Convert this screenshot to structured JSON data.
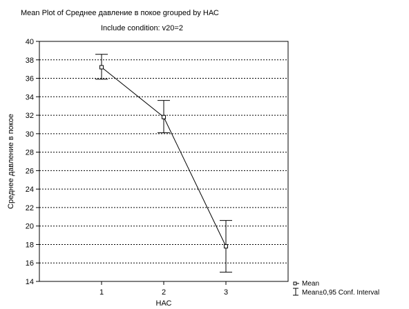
{
  "chart_data": {
    "type": "line",
    "title": "Mean Plot of Среднее давление в покое grouped by  НАС",
    "subtitle": "Include condition:  v20=2",
    "xlabel": "НАС",
    "ylabel": "Среднее давление в покое",
    "categories": [
      "1",
      "2",
      "3"
    ],
    "ylim": [
      14,
      40
    ],
    "yticks": [
      14,
      16,
      18,
      20,
      22,
      24,
      26,
      28,
      30,
      32,
      34,
      36,
      38,
      40
    ],
    "grid": true,
    "series": [
      {
        "name": "Mean",
        "values": [
          37.2,
          31.8,
          17.8
        ],
        "ci_lower": [
          35.9,
          30.1,
          15.0
        ],
        "ci_upper": [
          38.6,
          33.6,
          20.6
        ]
      }
    ],
    "legend": {
      "position": "bottom-right",
      "entries": [
        "Mean",
        "Mean±0,95 Conf. Interval"
      ]
    }
  }
}
